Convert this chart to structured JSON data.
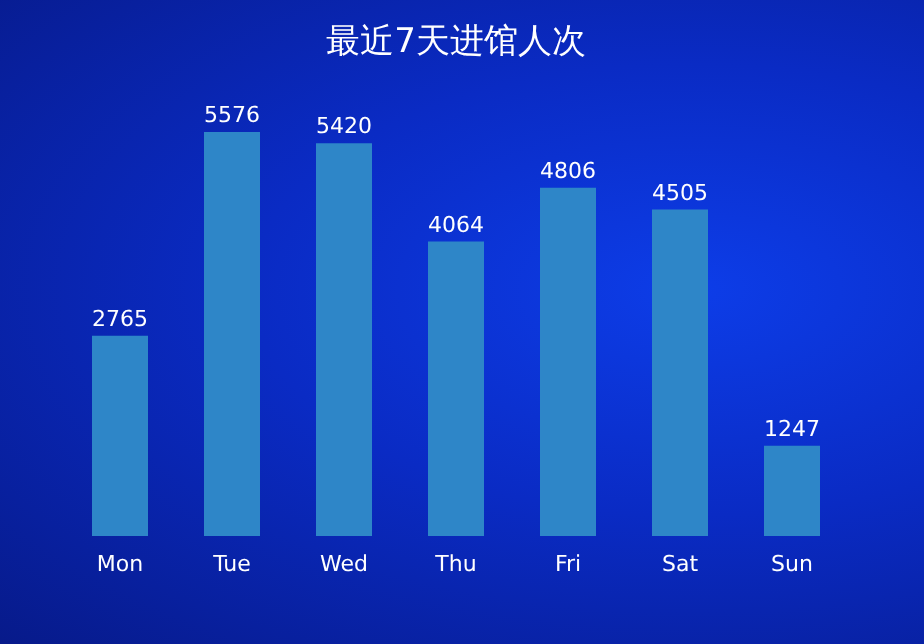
{
  "chart_data": {
    "type": "bar",
    "title": "最近7天进馆人次",
    "categories": [
      "Mon",
      "Tue",
      "Wed",
      "Thu",
      "Fri",
      "Sat",
      "Sun"
    ],
    "values": [
      2765,
      5576,
      5420,
      4064,
      4806,
      4505,
      1247
    ],
    "color": "#2e86c8",
    "data_labels": true
  }
}
